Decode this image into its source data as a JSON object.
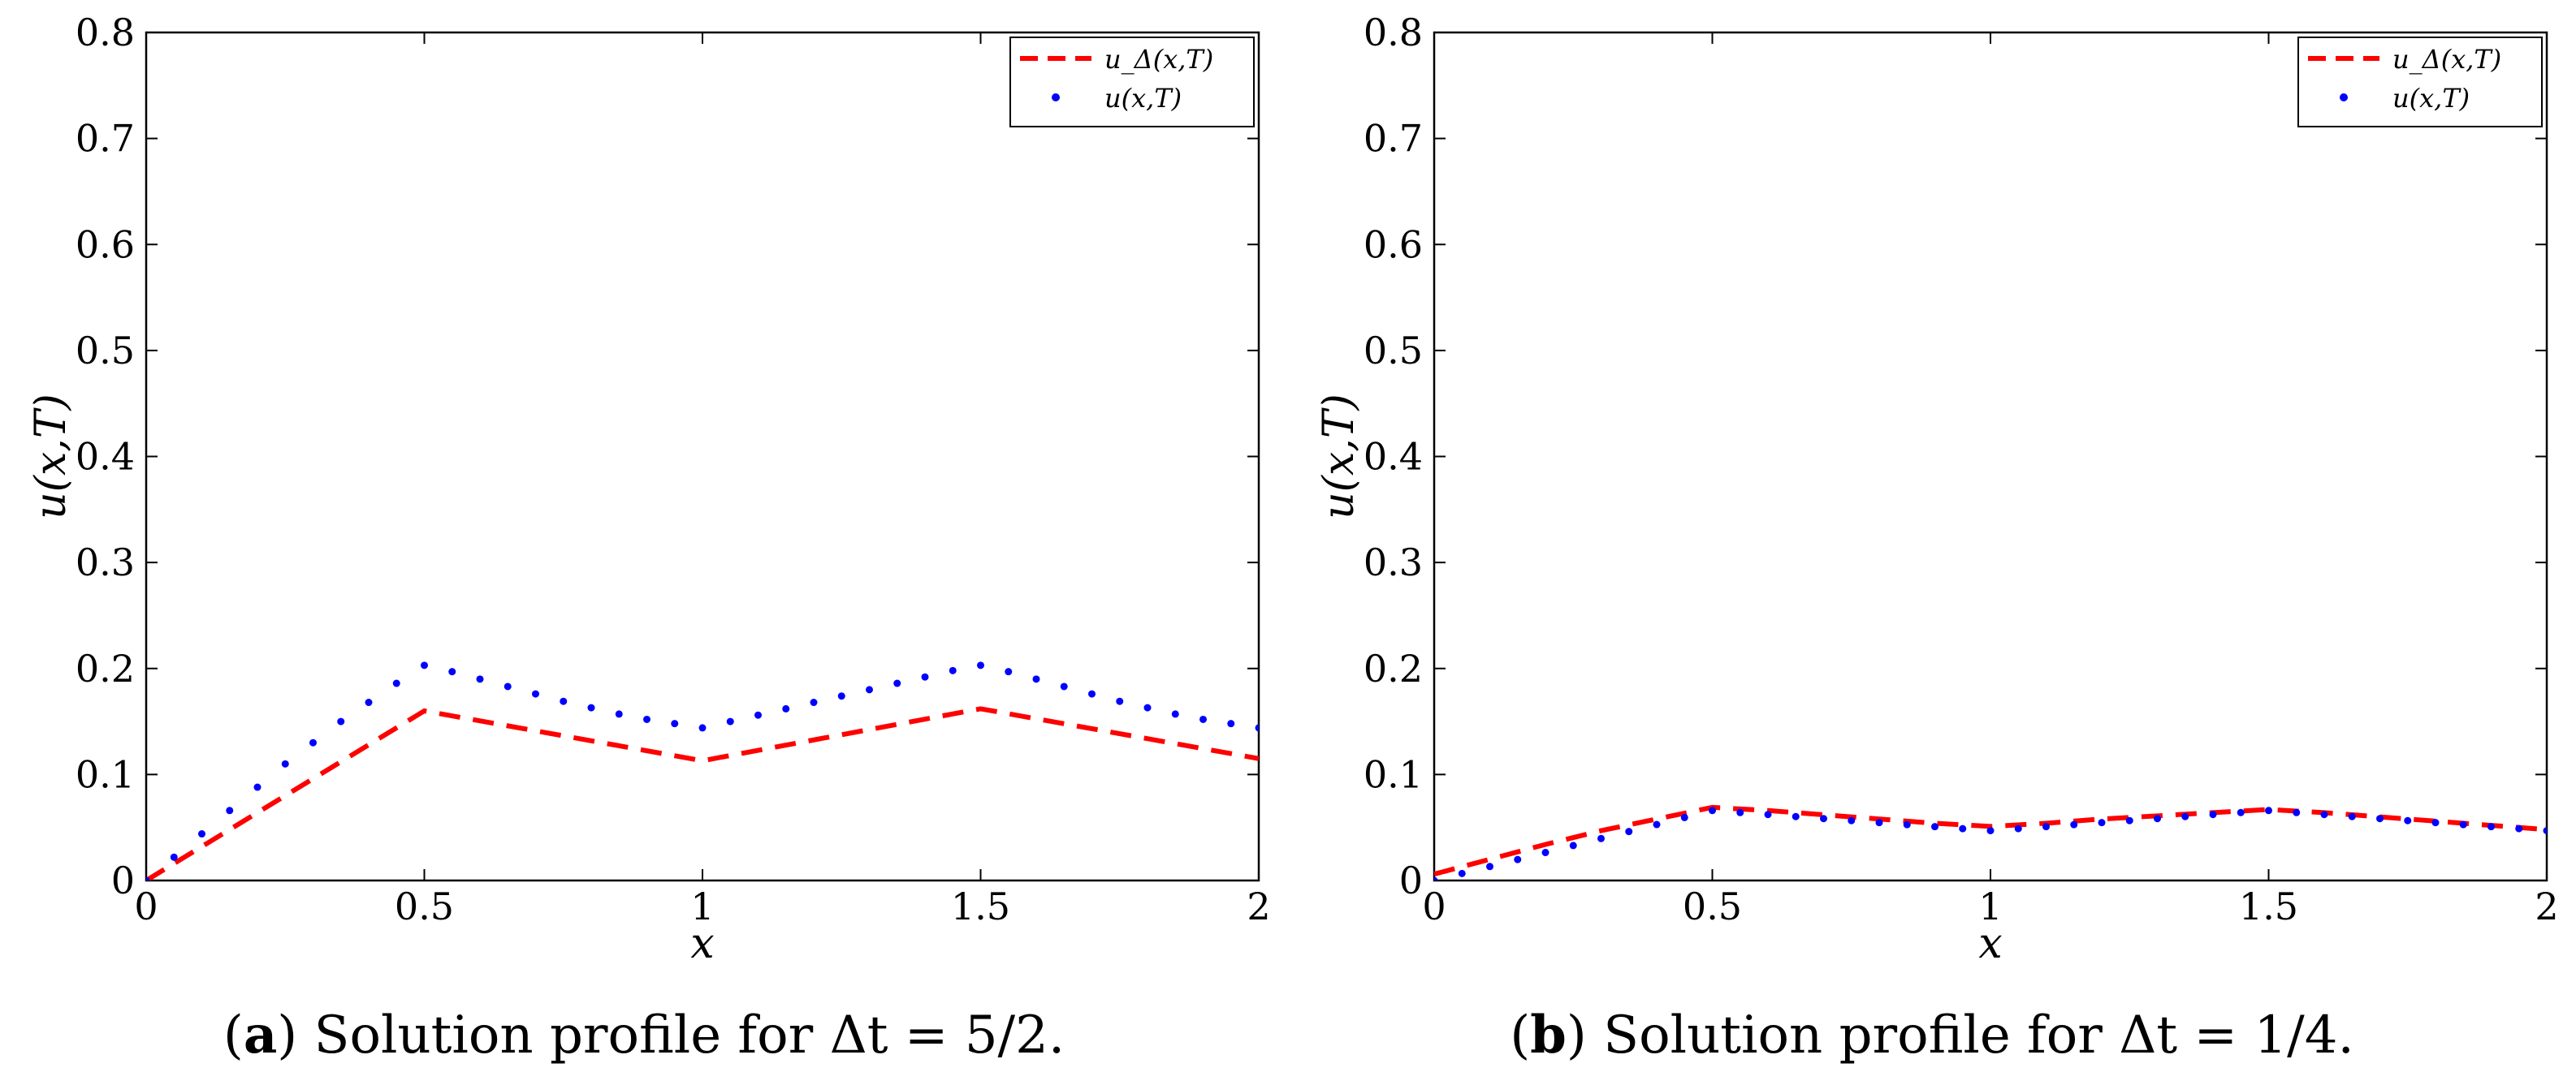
{
  "chart_data": [
    {
      "type": "line",
      "panel_label": "a",
      "caption": "Solution profile for Δt = 5/2.",
      "xlabel": "x",
      "ylabel": "u(x,T)",
      "xlim": [
        0,
        2
      ],
      "ylim": [
        0,
        0.8
      ],
      "xticks": [
        "0",
        "0.5",
        "1",
        "1.5",
        "2"
      ],
      "yticks": [
        "0",
        "0.1",
        "0.2",
        "0.3",
        "0.4",
        "0.5",
        "0.6",
        "0.7",
        "0.8"
      ],
      "legend_position": "top-right",
      "series": [
        {
          "name": "u_Δ(x,T)",
          "style": "dashed",
          "color": "#ff0000",
          "x": [
            0,
            0.5,
            1,
            1.5,
            2
          ],
          "y": [
            0,
            0.16,
            0.113,
            0.162,
            0.115
          ]
        },
        {
          "name": "u(x,T)",
          "style": "dotted",
          "color": "#0000ff",
          "x": [
            0,
            0.05,
            0.1,
            0.15,
            0.2,
            0.25,
            0.3,
            0.35,
            0.4,
            0.45,
            0.5,
            0.55,
            0.6,
            0.65,
            0.7,
            0.75,
            0.8,
            0.85,
            0.9,
            0.95,
            1,
            1.05,
            1.1,
            1.15,
            1.2,
            1.25,
            1.3,
            1.35,
            1.4,
            1.45,
            1.5,
            1.55,
            1.6,
            1.65,
            1.7,
            1.75,
            1.8,
            1.85,
            1.9,
            1.95,
            2
          ],
          "y": [
            0,
            0.022,
            0.044,
            0.066,
            0.088,
            0.11,
            0.13,
            0.15,
            0.168,
            0.186,
            0.203,
            0.197,
            0.19,
            0.183,
            0.176,
            0.169,
            0.163,
            0.157,
            0.152,
            0.148,
            0.144,
            0.15,
            0.156,
            0.162,
            0.168,
            0.174,
            0.18,
            0.186,
            0.192,
            0.198,
            0.203,
            0.197,
            0.19,
            0.183,
            0.176,
            0.169,
            0.163,
            0.157,
            0.152,
            0.148,
            0.144
          ]
        }
      ]
    },
    {
      "type": "line",
      "panel_label": "b",
      "caption": "Solution profile for Δt = 1/4.",
      "xlabel": "x",
      "ylabel": "u(x,T)",
      "xlim": [
        0,
        2
      ],
      "ylim": [
        0,
        0.8
      ],
      "xticks": [
        "0",
        "0.5",
        "1",
        "1.5",
        "2"
      ],
      "yticks": [
        "0",
        "0.1",
        "0.2",
        "0.3",
        "0.4",
        "0.5",
        "0.6",
        "0.7",
        "0.8"
      ],
      "legend_position": "top-right",
      "series": [
        {
          "name": "u_Δ(x,T)",
          "style": "dashed",
          "color": "#ff0000",
          "x": [
            0,
            0.1,
            0.2,
            0.3,
            0.4,
            0.5,
            0.6,
            0.7,
            0.8,
            0.9,
            1,
            1.1,
            1.2,
            1.3,
            1.4,
            1.5,
            1.6,
            1.7,
            1.8,
            1.9,
            2
          ],
          "y": [
            0.006,
            0.02,
            0.034,
            0.047,
            0.058,
            0.069,
            0.066,
            0.062,
            0.058,
            0.054,
            0.051,
            0.054,
            0.058,
            0.061,
            0.064,
            0.067,
            0.064,
            0.06,
            0.056,
            0.052,
            0.048
          ]
        },
        {
          "name": "u(x,T)",
          "style": "dotted",
          "color": "#0000ff",
          "x": [
            0,
            0.05,
            0.1,
            0.15,
            0.2,
            0.25,
            0.3,
            0.35,
            0.4,
            0.45,
            0.5,
            0.55,
            0.6,
            0.65,
            0.7,
            0.75,
            0.8,
            0.85,
            0.9,
            0.95,
            1,
            1.05,
            1.1,
            1.15,
            1.2,
            1.25,
            1.3,
            1.35,
            1.4,
            1.45,
            1.5,
            1.55,
            1.6,
            1.65,
            1.7,
            1.75,
            1.8,
            1.85,
            1.9,
            1.95,
            2
          ],
          "y": [
            0,
            0.0066,
            0.0132,
            0.0198,
            0.0264,
            0.033,
            0.0396,
            0.0462,
            0.0528,
            0.0594,
            0.066,
            0.0641,
            0.0622,
            0.0603,
            0.0584,
            0.0565,
            0.0546,
            0.0527,
            0.0508,
            0.0489,
            0.047,
            0.0489,
            0.0508,
            0.0527,
            0.0546,
            0.0565,
            0.0584,
            0.0603,
            0.0622,
            0.0641,
            0.066,
            0.0641,
            0.0622,
            0.0603,
            0.0584,
            0.0565,
            0.0546,
            0.0527,
            0.0508,
            0.0489,
            0.047
          ]
        }
      ]
    }
  ]
}
